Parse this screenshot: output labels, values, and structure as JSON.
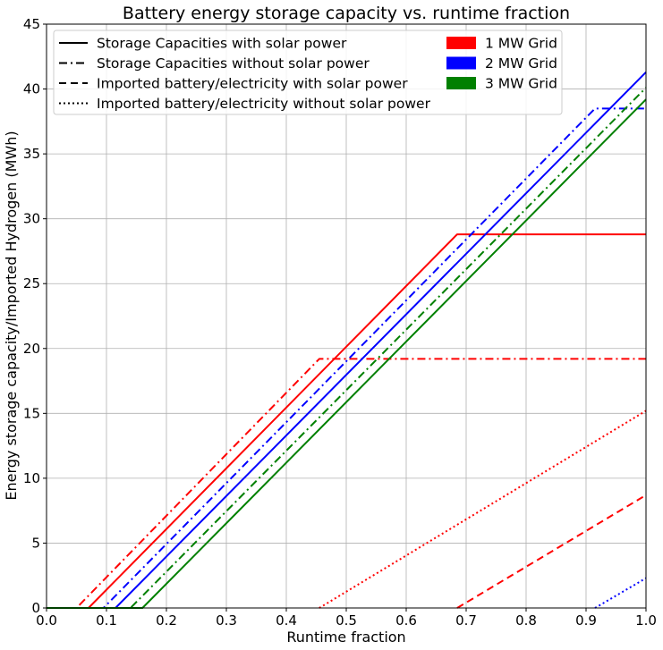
{
  "chart_data": {
    "type": "line",
    "title": "Battery energy storage capacity vs. runtime fraction",
    "xlabel": "Runtime fraction",
    "ylabel": "Energy storage capacity/Imported Hydrogen (MWh)",
    "xlim": [
      0,
      1
    ],
    "ylim": [
      0,
      45
    ],
    "xticks": [
      "0.0",
      "0.1",
      "0.2",
      "0.3",
      "0.4",
      "0.5",
      "0.6",
      "0.7",
      "0.8",
      "0.9",
      "1.0"
    ],
    "yticks": [
      "0",
      "5",
      "10",
      "15",
      "20",
      "25",
      "30",
      "35",
      "40",
      "45"
    ],
    "grid": true,
    "legend_position": "top",
    "legend_styles": [
      {
        "label": "Storage Capacities with solar power",
        "style": "solid"
      },
      {
        "label": "Storage Capacities without solar power",
        "style": "dashdot"
      },
      {
        "label": "Imported battery/electricity with solar power",
        "style": "dashed"
      },
      {
        "label": "Imported battery/electricity without solar power",
        "style": "dotted"
      }
    ],
    "legend_colors": [
      {
        "label": "1 MW Grid",
        "color": "#ff0000"
      },
      {
        "label": "2 MW Grid",
        "color": "#0000ff"
      },
      {
        "label": "3 MW Grid",
        "color": "#008000"
      }
    ],
    "series": [
      {
        "grid": "1 MW Grid",
        "style": "solid",
        "color": "#ff0000",
        "points": [
          [
            0,
            0
          ],
          [
            0.07,
            0
          ],
          [
            0.685,
            28.8
          ],
          [
            1.0,
            28.8
          ]
        ]
      },
      {
        "grid": "1 MW Grid",
        "style": "dashdot",
        "color": "#ff0000",
        "points": [
          [
            0,
            0
          ],
          [
            0.05,
            0
          ],
          [
            0.455,
            19.2
          ],
          [
            1.0,
            19.2
          ]
        ]
      },
      {
        "grid": "1 MW Grid",
        "style": "dashed",
        "color": "#ff0000",
        "points": [
          [
            0.685,
            0
          ],
          [
            1.0,
            8.7
          ]
        ]
      },
      {
        "grid": "1 MW Grid",
        "style": "dotted",
        "color": "#ff0000",
        "points": [
          [
            0.455,
            0
          ],
          [
            1.0,
            15.2
          ]
        ]
      },
      {
        "grid": "2 MW Grid",
        "style": "solid",
        "color": "#0000ff",
        "points": [
          [
            0,
            0
          ],
          [
            0.115,
            0
          ],
          [
            1.0,
            41.3
          ]
        ]
      },
      {
        "grid": "2 MW Grid",
        "style": "dashdot",
        "color": "#0000ff",
        "points": [
          [
            0,
            0
          ],
          [
            0.095,
            0
          ],
          [
            0.915,
            38.5
          ],
          [
            1.0,
            38.5
          ]
        ]
      },
      {
        "grid": "2 MW Grid",
        "style": "dotted",
        "color": "#0000ff",
        "points": [
          [
            0.915,
            0
          ],
          [
            1.0,
            2.3
          ]
        ]
      },
      {
        "grid": "3 MW Grid",
        "style": "solid",
        "color": "#008000",
        "points": [
          [
            0,
            0
          ],
          [
            0.16,
            0
          ],
          [
            1.0,
            39.2
          ]
        ]
      },
      {
        "grid": "3 MW Grid",
        "style": "dashdot",
        "color": "#008000",
        "points": [
          [
            0,
            0
          ],
          [
            0.14,
            0
          ],
          [
            1.0,
            40.1
          ]
        ]
      }
    ]
  }
}
